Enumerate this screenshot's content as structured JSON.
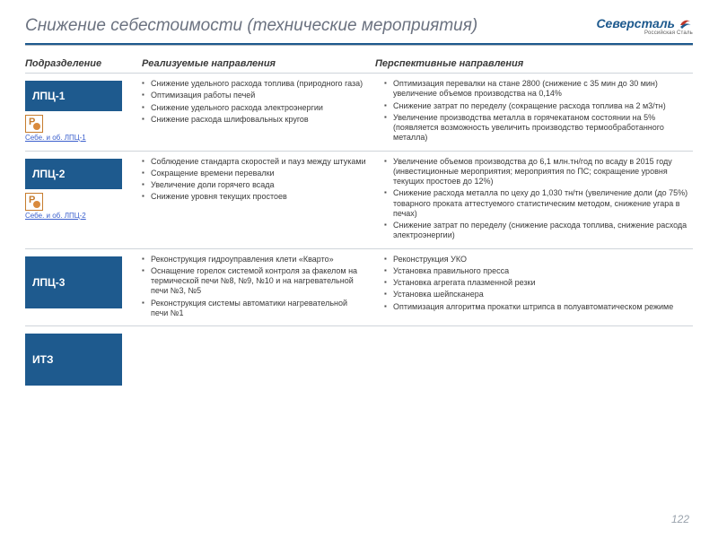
{
  "title": "Снижение себестоимости (технические мероприятия)",
  "logo": {
    "main": "Северсталь",
    "sub": "Российская Сталь"
  },
  "columns": {
    "dept": "Подразделение",
    "impl": "Реализуемые направления",
    "persp": "Перспективные  направления"
  },
  "rows": [
    {
      "dept": "ЛПЦ-1",
      "attach": "Cебе. и об. ЛПЦ-1",
      "impl": [
        "Снижение удельного расхода топлива (природного газа)",
        "Оптимизация работы печей",
        "Снижение удельного расхода электроэнергии",
        "Снижение расхода шлифовальных кругов"
      ],
      "persp": [
        "Оптимизация перевалки на стане 2800 (снижение с 35 мин до 30 мин) увеличение объемов производства на 0,14%",
        "Снижение затрат по переделу (сокращение расхода топлива на 2 м3/тн)",
        "Увеличение производства металла в горячекатаном состоянии на 5% (появляется возможность увеличить производство термообработанного металла)"
      ]
    },
    {
      "dept": "ЛПЦ-2",
      "attach": "Cебе. и об. ЛПЦ-2",
      "impl": [
        "Соблюдение стандарта скоростей и пауз между штуками",
        "Сокращение времени перевалки",
        "Увеличение доли горячего всада",
        "Снижение уровня текущих простоев"
      ],
      "persp": [
        "Увеличение объемов производства до 6,1 млн.тн/год по всаду в 2015 году (инвестиционные мероприятия; мероприятия по ПС; сокращение уровня текущих простоев до 12%)",
        "Снижение расхода металла по цеху до 1,030 тн/тн (увеличение доли (до 75%) товарного проката аттестуемого статистическим методом, снижение угара в печах)",
        "Снижение затрат по переделу (снижение расхода топлива, снижение расхода электроэнергии)"
      ]
    },
    {
      "dept": "ЛПЦ-3",
      "attach": "",
      "impl": [
        "Реконструкция гидроуправления клети «Кварто»",
        "Оснащение горелок системой контроля за факелом на термической печи №8, №9, №10 и на нагревательной печи №3, №5",
        "Реконструкция системы автоматики нагревательной печи №1"
      ],
      "persp": [
        "Реконструкция УКО",
        "Установка правильного пресса",
        "Установка агрегата плазменной резки",
        "Установка шейпсканера",
        "Оптимизация алгоритма прокатки штрипса в полуавтоматическом режиме"
      ]
    },
    {
      "dept": "ИТЗ",
      "attach": "",
      "impl": [],
      "persp": []
    }
  ],
  "page_number": "122",
  "colors": {
    "brand": "#1e5a8e",
    "title": "#6b7280",
    "text": "#3a3a3a",
    "border": "#cfd4da"
  }
}
